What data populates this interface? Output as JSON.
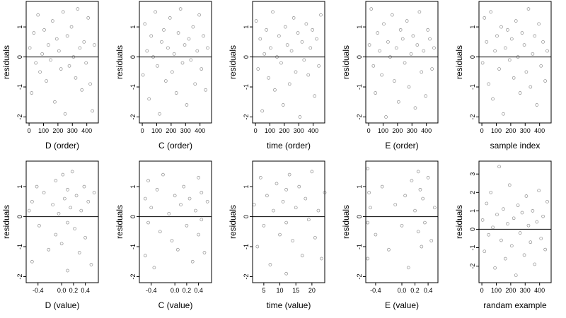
{
  "chart_data": [
    {
      "type": "scatter",
      "xlabel": "D (order)",
      "ylabel": "residuals",
      "xlim": [
        -20,
        480
      ],
      "ylim": [
        -2.2,
        1.85
      ],
      "xticks": [
        0,
        100,
        200,
        300,
        400
      ],
      "xtick_labels": [
        "0",
        "100",
        "200",
        "300",
        "400"
      ],
      "yticks": [
        -2,
        -1,
        0,
        1
      ],
      "ytick_labels": [
        "-2",
        "-1",
        "0",
        "1"
      ],
      "reference_line": 0,
      "x": [
        5,
        18,
        33,
        47,
        62,
        76,
        91,
        105,
        120,
        134,
        149,
        163,
        178,
        192,
        207,
        221,
        236,
        250,
        265,
        279,
        294,
        308,
        323,
        337,
        352,
        366,
        381,
        395,
        410,
        424,
        439,
        453
      ],
      "y": [
        0.3,
        -1.2,
        0.8,
        -0.2,
        1.4,
        -0.5,
        0.1,
        0.9,
        -0.8,
        0.4,
        -0.1,
        1.2,
        -1.5,
        0.6,
        0.2,
        -0.4,
        1.5,
        -1.9,
        0.7,
        -0.3,
        1.0,
        0.0,
        -0.7,
        1.6,
        0.3,
        -1.1,
        0.5,
        -0.2,
        1.3,
        -0.9,
        -1.8,
        0.4
      ]
    },
    {
      "type": "scatter",
      "xlabel": "C (order)",
      "ylabel": "residuals",
      "xlim": [
        -20,
        480
      ],
      "ylim": [
        -2.2,
        1.85
      ],
      "xticks": [
        0,
        100,
        200,
        300,
        400
      ],
      "xtick_labels": [
        "0",
        "100",
        "200",
        "300",
        "400"
      ],
      "yticks": [
        -2,
        -1,
        0,
        1
      ],
      "ytick_labels": [
        "-2",
        "-1",
        "0",
        "1"
      ],
      "reference_line": 0,
      "x": [
        5,
        18,
        33,
        47,
        62,
        76,
        91,
        105,
        120,
        134,
        149,
        163,
        178,
        192,
        207,
        221,
        236,
        250,
        265,
        279,
        294,
        308,
        323,
        337,
        352,
        366,
        381,
        395,
        410,
        424,
        439,
        453
      ],
      "y": [
        -0.6,
        1.1,
        0.2,
        -1.4,
        0.7,
        0.0,
        1.5,
        -0.3,
        -1.9,
        0.5,
        0.9,
        -0.8,
        0.3,
        1.3,
        -0.5,
        0.1,
        -1.2,
        0.8,
        1.6,
        -0.2,
        0.4,
        -1.6,
        0.6,
        -0.1,
        1.0,
        -0.9,
        0.2,
        1.4,
        -0.4,
        0.7,
        -1.1,
        0.3
      ]
    },
    {
      "type": "scatter",
      "xlabel": "time (order)",
      "ylabel": "residuals",
      "xlim": [
        -20,
        480
      ],
      "ylim": [
        -2.2,
        1.85
      ],
      "xticks": [
        0,
        100,
        200,
        300,
        400
      ],
      "xtick_labels": [
        "0",
        "100",
        "200",
        "300",
        "400"
      ],
      "yticks": [
        -2,
        -1,
        0,
        1
      ],
      "ytick_labels": [
        "-2",
        "-1",
        "0",
        "1"
      ],
      "reference_line": 0,
      "x": [
        5,
        18,
        33,
        47,
        62,
        76,
        91,
        105,
        120,
        134,
        149,
        163,
        178,
        192,
        207,
        221,
        236,
        250,
        265,
        279,
        294,
        308,
        323,
        337,
        352,
        366,
        381,
        395,
        410,
        424,
        439,
        453
      ],
      "y": [
        1.2,
        -0.4,
        0.6,
        -1.8,
        0.1,
        0.9,
        -0.7,
        0.3,
        1.5,
        -1.1,
        0.0,
        0.7,
        -0.2,
        -1.6,
        1.0,
        0.4,
        -0.9,
        0.2,
        1.3,
        -0.5,
        0.8,
        -2.0,
        0.5,
        -0.1,
        1.1,
        -0.6,
        0.3,
        0.9,
        -1.3,
        0.6,
        -0.3,
        1.4
      ]
    },
    {
      "type": "scatter",
      "xlabel": "E (order)",
      "ylabel": "residuals",
      "xlim": [
        -20,
        480
      ],
      "ylim": [
        -2.2,
        1.85
      ],
      "xticks": [
        0,
        100,
        200,
        300,
        400
      ],
      "xtick_labels": [
        "0",
        "100",
        "200",
        "300",
        "400"
      ],
      "yticks": [
        -2,
        -1,
        0,
        1
      ],
      "ytick_labels": [
        "-2",
        "-1",
        "0",
        "1"
      ],
      "reference_line": 0,
      "x": [
        5,
        18,
        33,
        47,
        62,
        76,
        91,
        105,
        120,
        134,
        149,
        163,
        178,
        192,
        207,
        221,
        236,
        250,
        265,
        279,
        294,
        308,
        323,
        337,
        352,
        366,
        381,
        395,
        410,
        424,
        439,
        453
      ],
      "y": [
        0.4,
        1.6,
        -0.3,
        -1.2,
        0.8,
        0.2,
        -0.6,
        1.1,
        -2.0,
        0.5,
        0.0,
        1.4,
        -0.8,
        0.3,
        -1.5,
        0.9,
        0.6,
        -0.2,
        1.2,
        -1.0,
        0.1,
        0.7,
        -1.7,
        0.4,
        1.5,
        -0.5,
        0.2,
        -1.3,
        0.9,
        0.6,
        -0.4,
        0.3
      ]
    },
    {
      "type": "scatter",
      "xlabel": "sample index",
      "ylabel": "residuals",
      "xlim": [
        -20,
        480
      ],
      "ylim": [
        -2.2,
        1.85
      ],
      "xticks": [
        0,
        100,
        200,
        300,
        400
      ],
      "xtick_labels": [
        "0",
        "100",
        "200",
        "300",
        "400"
      ],
      "yticks": [
        -2,
        -1,
        0,
        1
      ],
      "ytick_labels": [
        "-2",
        "-1",
        "0",
        "1"
      ],
      "reference_line": 0,
      "x": [
        5,
        18,
        33,
        47,
        62,
        76,
        91,
        105,
        120,
        134,
        149,
        163,
        178,
        192,
        207,
        221,
        236,
        250,
        265,
        279,
        294,
        308,
        323,
        337,
        352,
        366,
        381,
        395,
        410,
        424,
        439,
        453
      ],
      "y": [
        -0.2,
        1.3,
        0.5,
        -0.9,
        1.5,
        -1.4,
        0.2,
        0.7,
        -0.4,
        1.0,
        -1.9,
        0.3,
        0.9,
        -0.1,
        0.6,
        -0.7,
        1.2,
        0.0,
        -1.2,
        0.8,
        0.4,
        -0.5,
        1.6,
        -1.0,
        0.1,
        0.7,
        -1.6,
        1.1,
        -0.3,
        0.5,
        -0.8,
        0.2
      ]
    },
    {
      "type": "scatter",
      "xlabel": "D (value)",
      "ylabel": "residuals",
      "xlim": [
        -0.6,
        0.62
      ],
      "ylim": [
        -2.2,
        1.85
      ],
      "xticks": [
        -0.4,
        0.0,
        0.2,
        0.4
      ],
      "xtick_labels": [
        "-0.4",
        "0.0",
        "0.2",
        "0.4"
      ],
      "yticks": [
        -2,
        -1,
        0,
        1
      ],
      "ytick_labels": [
        "-2",
        "-1",
        "0",
        "1"
      ],
      "reference_line": 0,
      "x": [
        -0.55,
        -0.5,
        -0.5,
        -0.42,
        -0.38,
        -0.3,
        -0.22,
        -0.15,
        -0.1,
        -0.1,
        -0.05,
        0.0,
        0.02,
        0.05,
        0.1,
        0.1,
        0.1,
        0.15,
        0.18,
        0.22,
        0.25,
        0.3,
        0.33,
        0.38,
        0.4,
        0.45,
        0.5,
        0.55
      ],
      "y": [
        0.2,
        -1.5,
        0.5,
        1.0,
        -0.3,
        0.8,
        -1.1,
        0.4,
        1.2,
        -0.6,
        0.1,
        -0.9,
        1.4,
        0.6,
        -0.2,
        0.9,
        -1.8,
        0.3,
        1.5,
        -0.4,
        0.7,
        -1.2,
        0.2,
        1.0,
        -0.7,
        0.5,
        -1.6,
        0.8
      ]
    },
    {
      "type": "scatter",
      "xlabel": "C (value)",
      "ylabel": "residuals",
      "xlim": [
        -0.6,
        0.62
      ],
      "ylim": [
        -2.2,
        1.85
      ],
      "xticks": [
        -0.4,
        0.0,
        0.2,
        0.4
      ],
      "xtick_labels": [
        "-0.4",
        "0.0",
        "0.2",
        "0.4"
      ],
      "yticks": [
        -2,
        -1,
        0,
        1
      ],
      "ytick_labels": [
        "-2",
        "-1",
        "0",
        "1"
      ],
      "reference_line": 0,
      "x": [
        -0.5,
        -0.5,
        -0.45,
        -0.45,
        -0.4,
        -0.35,
        -0.3,
        -0.25,
        -0.2,
        -0.1,
        -0.05,
        0.0,
        0.05,
        0.1,
        0.15,
        0.2,
        0.25,
        0.3,
        0.35,
        0.4,
        0.4,
        0.45,
        0.45,
        0.5,
        0.55
      ],
      "y": [
        0.6,
        -1.3,
        1.2,
        -0.2,
        0.3,
        -1.7,
        0.9,
        -0.5,
        1.4,
        0.1,
        -0.8,
        0.7,
        -1.1,
        0.4,
        1.0,
        -0.3,
        0.6,
        -1.5,
        0.2,
        1.3,
        -0.6,
        0.8,
        -0.1,
        -1.2,
        0.5
      ]
    },
    {
      "type": "scatter",
      "xlabel": "time (value)",
      "ylabel": "residuals",
      "xlim": [
        1.5,
        24
      ],
      "ylim": [
        -2.2,
        1.85
      ],
      "xticks": [
        5,
        10,
        15,
        20
      ],
      "xtick_labels": [
        "5",
        "10",
        "15",
        "20"
      ],
      "yticks": [
        -2,
        -1,
        0,
        1
      ],
      "ytick_labels": [
        "-2",
        "-1",
        "0",
        "1"
      ],
      "reference_line": 0,
      "x": [
        2,
        3,
        4,
        5,
        6,
        7,
        8,
        9,
        10,
        11,
        12,
        12,
        12,
        13,
        14,
        15,
        16,
        17,
        18,
        19,
        20,
        21,
        22,
        23,
        24
      ],
      "y": [
        0.4,
        -1.0,
        1.3,
        -0.3,
        0.7,
        -1.6,
        0.2,
        1.1,
        -0.6,
        0.5,
        -1.9,
        0.9,
        -0.2,
        1.4,
        -0.8,
        0.3,
        1.0,
        -1.3,
        0.6,
        -0.1,
        1.5,
        -0.7,
        0.2,
        -1.4,
        0.8
      ]
    },
    {
      "type": "scatter",
      "xlabel": "E (value)",
      "ylabel": "residuals",
      "xlim": [
        -0.55,
        0.55
      ],
      "ylim": [
        -2.2,
        1.85
      ],
      "xticks": [
        -0.4,
        0.0,
        0.2,
        0.4
      ],
      "xtick_labels": [
        "-0.4",
        "0.0",
        "0.2",
        "0.4"
      ],
      "yticks": [
        -2,
        -1,
        0,
        1
      ],
      "ytick_labels": [
        "-2",
        "-1",
        "0",
        "1"
      ],
      "reference_line": 0,
      "x": [
        -0.52,
        -0.52,
        -0.52,
        -0.5,
        -0.48,
        -0.4,
        -0.3,
        -0.2,
        -0.1,
        0.0,
        0.05,
        0.1,
        0.15,
        0.2,
        0.25,
        0.25,
        0.28,
        0.3,
        0.32,
        0.35,
        0.4,
        0.45,
        0.5
      ],
      "y": [
        1.6,
        -0.2,
        -1.4,
        0.8,
        0.3,
        -0.6,
        1.0,
        -1.1,
        0.4,
        -0.3,
        0.7,
        -1.7,
        1.2,
        0.2,
        1.5,
        -0.5,
        0.9,
        -1.0,
        0.6,
        -0.2,
        1.3,
        -0.8,
        0.3
      ]
    },
    {
      "type": "scatter",
      "xlabel": "randam example",
      "ylabel": "residuals",
      "xlim": [
        -20,
        480
      ],
      "ylim": [
        -2.9,
        3.7
      ],
      "xticks": [
        0,
        100,
        200,
        300,
        400
      ],
      "xtick_labels": [
        "0",
        "100",
        "200",
        "300",
        "400"
      ],
      "yticks": [
        -2,
        -1,
        0,
        1,
        2,
        3
      ],
      "ytick_labels": [
        "-2",
        "-1",
        "0",
        "1",
        "2",
        "3"
      ],
      "reference_line": 0,
      "x": [
        5,
        18,
        33,
        47,
        62,
        76,
        91,
        105,
        120,
        134,
        149,
        163,
        178,
        192,
        207,
        221,
        236,
        250,
        265,
        279,
        294,
        308,
        323,
        337,
        352,
        366,
        381,
        395,
        410,
        424,
        439,
        453
      ],
      "y": [
        0.5,
        -1.2,
        1.4,
        -0.3,
        2.0,
        0.1,
        -2.1,
        0.8,
        3.4,
        -0.6,
        1.1,
        -1.6,
        0.3,
        2.4,
        -0.9,
        0.6,
        -2.5,
        1.3,
        -0.2,
        0.9,
        -1.4,
        1.8,
        0.2,
        -0.7,
        1.0,
        -1.9,
        0.4,
        2.1,
        -0.5,
        0.7,
        -1.1,
        1.5
      ]
    }
  ]
}
